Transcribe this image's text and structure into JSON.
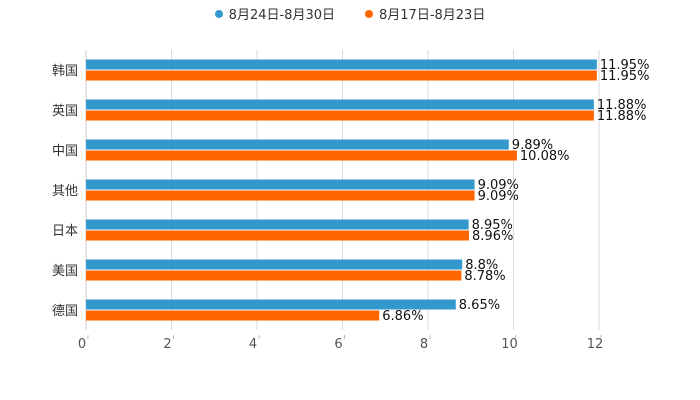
{
  "chart_data": {
    "type": "bar",
    "orientation": "horizontal",
    "categories": [
      "韩国",
      "英国",
      "中国",
      "其他",
      "日本",
      "美国",
      "德国"
    ],
    "series": [
      {
        "name": "8月24日-8月30日",
        "color": "#3399cc",
        "values": [
          11.95,
          11.88,
          9.89,
          9.09,
          8.95,
          8.8,
          8.65
        ],
        "labels": [
          "11.95%",
          "11.88%",
          "9.89%",
          "9.09%",
          "8.95%",
          "8.8%",
          "8.65%"
        ]
      },
      {
        "name": "8月17日-8月23日",
        "color": "#ff6600",
        "values": [
          11.95,
          11.88,
          10.08,
          9.09,
          8.96,
          8.78,
          6.86
        ],
        "labels": [
          "11.95%",
          "11.88%",
          "10.08%",
          "9.09%",
          "8.96%",
          "8.78%",
          "6.86%"
        ]
      }
    ],
    "xlim": [
      0,
      12
    ],
    "xticks": [
      "0",
      "2",
      "4",
      "6",
      "8",
      "10",
      "12"
    ],
    "grid": true,
    "legend_position": "top-center"
  }
}
